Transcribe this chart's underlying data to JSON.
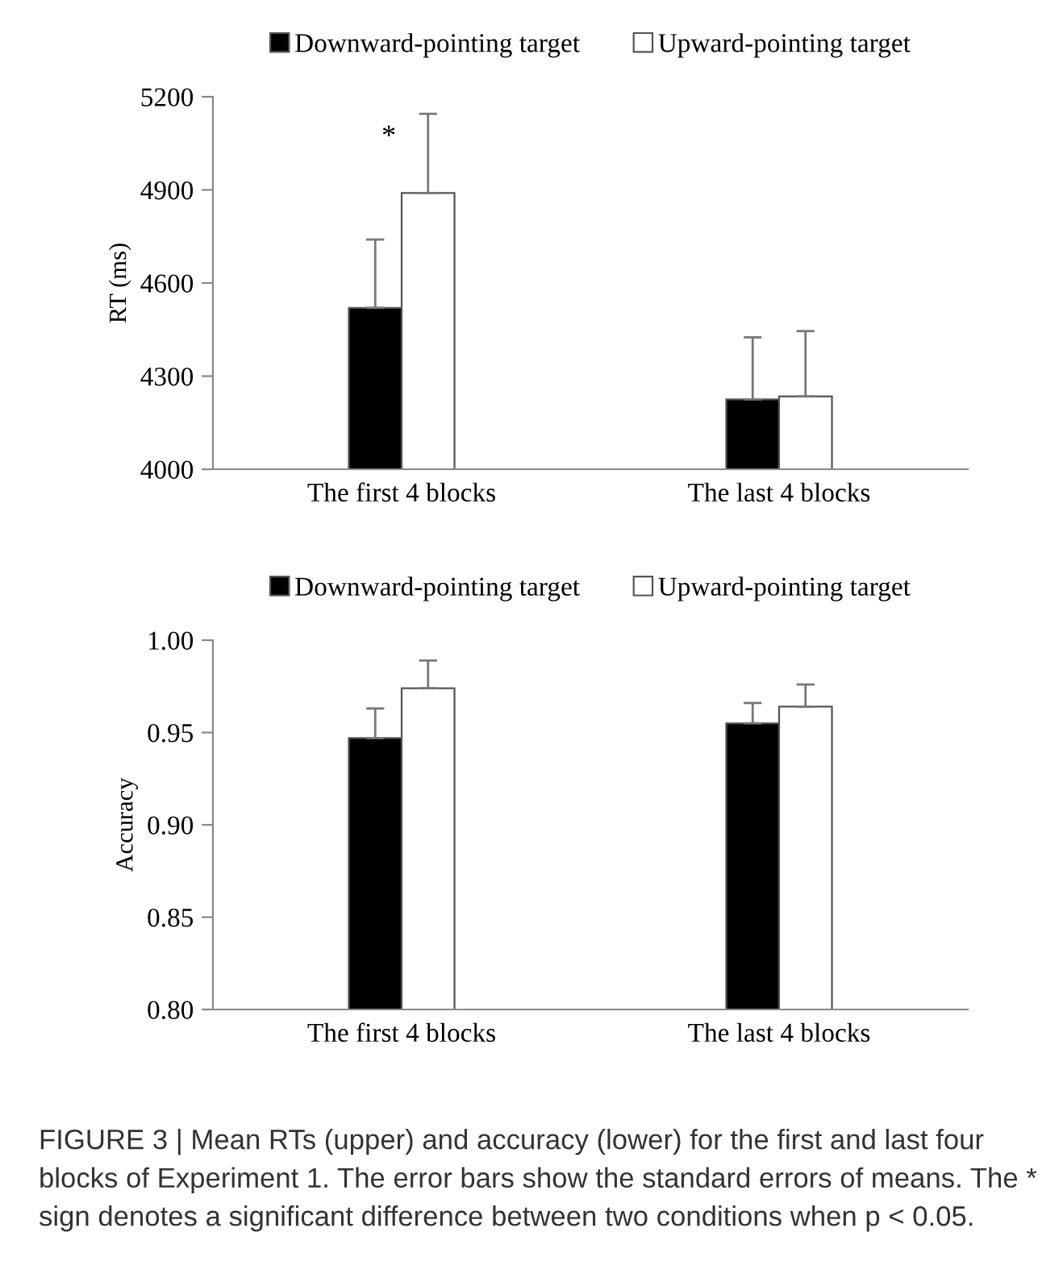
{
  "chart_data": [
    {
      "type": "bar",
      "ylabel": "RT (ms)",
      "categories": [
        "The first 4 blocks",
        "The last 4 blocks"
      ],
      "series": [
        {
          "name": "Downward-pointing target",
          "color": "#000000",
          "values": [
            4520,
            4225
          ],
          "errors": [
            [
              4520,
              4740
            ],
            [
              4225,
              4425
            ]
          ]
        },
        {
          "name": "Upward-pointing target",
          "color": "#ffffff",
          "values": [
            4890,
            4235
          ],
          "errors": [
            [
              4890,
              5145
            ],
            [
              4235,
              4445
            ]
          ]
        }
      ],
      "ylim": [
        4000,
        5200
      ],
      "yticks": [
        4000,
        4300,
        4600,
        4900,
        5200
      ],
      "grid": false,
      "legend": "top",
      "annotations": [
        "*"
      ]
    },
    {
      "type": "bar",
      "ylabel": "Accuracy",
      "categories": [
        "The first 4 blocks",
        "The last 4 blocks"
      ],
      "series": [
        {
          "name": "Downward-pointing target",
          "color": "#000000",
          "values": [
            0.947,
            0.955
          ],
          "errors": [
            [
              0.947,
              0.963
            ],
            [
              0.955,
              0.966
            ]
          ]
        },
        {
          "name": "Upward-pointing target",
          "color": "#ffffff",
          "values": [
            0.974,
            0.964
          ],
          "errors": [
            [
              0.974,
              0.989
            ],
            [
              0.964,
              0.976
            ]
          ]
        }
      ],
      "ylim": [
        0.8,
        1.0
      ],
      "yticks": [
        {
          "value": 0.8,
          "label": "0.80"
        },
        {
          "value": 0.85,
          "label": "0.85"
        },
        {
          "value": 0.9,
          "label": "0.90"
        },
        {
          "value": 0.95,
          "label": "0.95"
        },
        {
          "value": 1.0,
          "label": "1.00"
        }
      ],
      "grid": false,
      "legend": "top",
      "annotations": [
        "FIGURE 3 | Mean RTs (upper) and accuracy (lower) for the first and last four blocks of Experiment 1. The error bars show the standard errors of means. The * sign denotes a significant difference between two conditions when p < 0.05."
      ]
    }
  ]
}
